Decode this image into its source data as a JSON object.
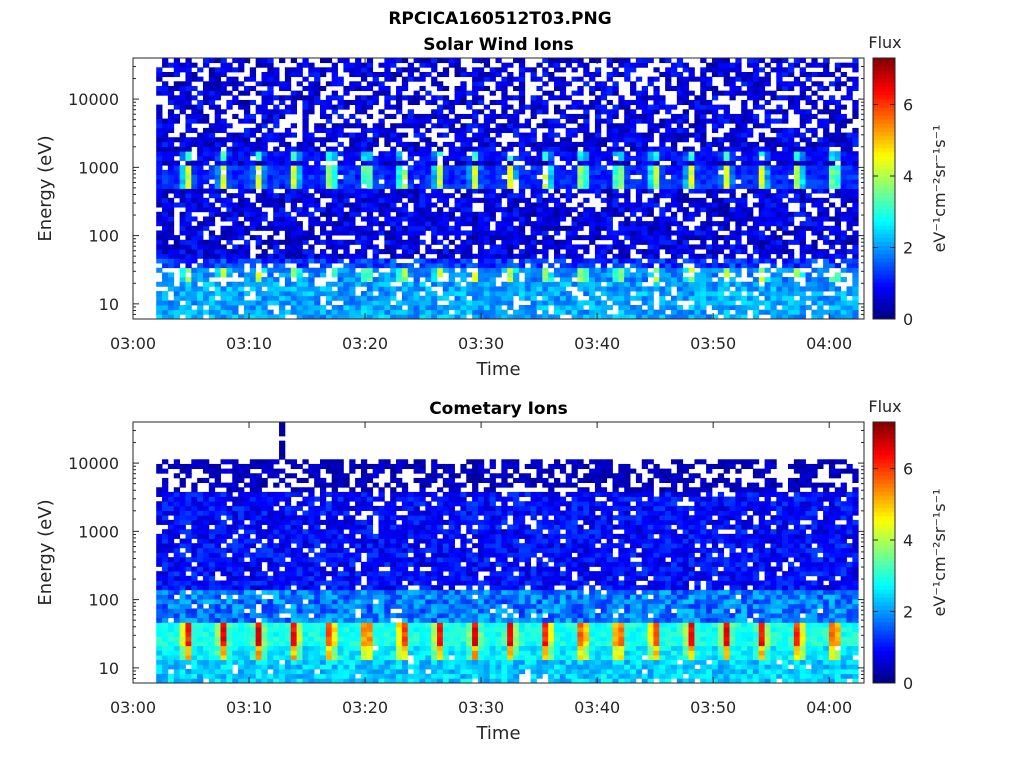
{
  "figure_title": "RPCICA160512T03.PNG",
  "colormap_stops": [
    "#00007f",
    "#0000ff",
    "#0080ff",
    "#00ffff",
    "#80ff80",
    "#ffff00",
    "#ff8000",
    "#ff0000",
    "#800000"
  ],
  "chart_data": [
    {
      "type": "heatmap",
      "title": "Solar Wind Ions",
      "xlabel": "Time",
      "ylabel": "Energy (eV)",
      "x_ticks": [
        "03:00",
        "03:10",
        "03:20",
        "03:30",
        "03:40",
        "03:50",
        "04:00"
      ],
      "x_range_minutes": [
        0,
        63
      ],
      "data_x_range_minutes": [
        2,
        62.5
      ],
      "y_scale": "log",
      "y_ticks": [
        10,
        100,
        1000,
        10000
      ],
      "y_tick_labels": [
        "10",
        "100",
        "1000",
        "10000"
      ],
      "y_range": [
        6,
        40000
      ],
      "colorbar": {
        "title": "Flux",
        "label": "eV⁻¹cm⁻²sr⁻¹s⁻¹",
        "range": [
          0,
          7.3
        ],
        "ticks": [
          0,
          2,
          4,
          6
        ],
        "tick_labels": [
          "0",
          "2",
          "4",
          "6"
        ]
      },
      "features": [
        {
          "energy_range_eV": [
            500,
            1000
          ],
          "typical_flux": 3.8,
          "pattern": "periodic bursts ~every 3 min"
        },
        {
          "energy_range_eV": [
            1200,
            1700
          ],
          "typical_flux": 3.0
        },
        {
          "energy_range_eV": [
            20,
            30
          ],
          "typical_flux": 3.5,
          "pattern": "periodic bursts"
        },
        {
          "energy_range_eV": [
            6,
            20
          ],
          "typical_flux": 1.8
        },
        {
          "energy_range_eV": [
            40,
            40000
          ],
          "typical_flux": 0.6
        }
      ]
    },
    {
      "type": "heatmap",
      "title": "Cometary Ions",
      "xlabel": "Time",
      "ylabel": "Energy (eV)",
      "x_ticks": [
        "03:00",
        "03:10",
        "03:20",
        "03:30",
        "03:40",
        "03:50",
        "04:00"
      ],
      "x_range_minutes": [
        0,
        63
      ],
      "data_x_range_minutes": [
        2,
        62.5
      ],
      "y_scale": "log",
      "y_ticks": [
        10,
        100,
        1000,
        10000
      ],
      "y_tick_labels": [
        "10",
        "100",
        "1000",
        "10000"
      ],
      "y_range": [
        6,
        40000
      ],
      "colorbar": {
        "title": "Flux",
        "label": "eV⁻¹cm⁻²sr⁻¹s⁻¹",
        "range": [
          0,
          7.3
        ],
        "ticks": [
          0,
          2,
          4,
          6
        ],
        "tick_labels": [
          "0",
          "2",
          "4",
          "6"
        ]
      },
      "features": [
        {
          "energy_range_eV": [
            22,
            40
          ],
          "typical_flux": 5.8,
          "pattern": "periodic bursts ~every 3 min"
        },
        {
          "energy_range_eV": [
            15,
            22
          ],
          "typical_flux": 4.5
        },
        {
          "energy_range_eV": [
            6,
            15
          ],
          "typical_flux": 2.3
        },
        {
          "energy_range_eV": [
            50,
            150
          ],
          "typical_flux": 1.8
        },
        {
          "energy_range_eV": [
            150,
            11000
          ],
          "typical_flux": 0.7
        },
        {
          "energy_range_eV": [
            11000,
            40000
          ],
          "typical_flux": 0.3,
          "pattern": "isolated spike near 03:12"
        }
      ]
    }
  ]
}
